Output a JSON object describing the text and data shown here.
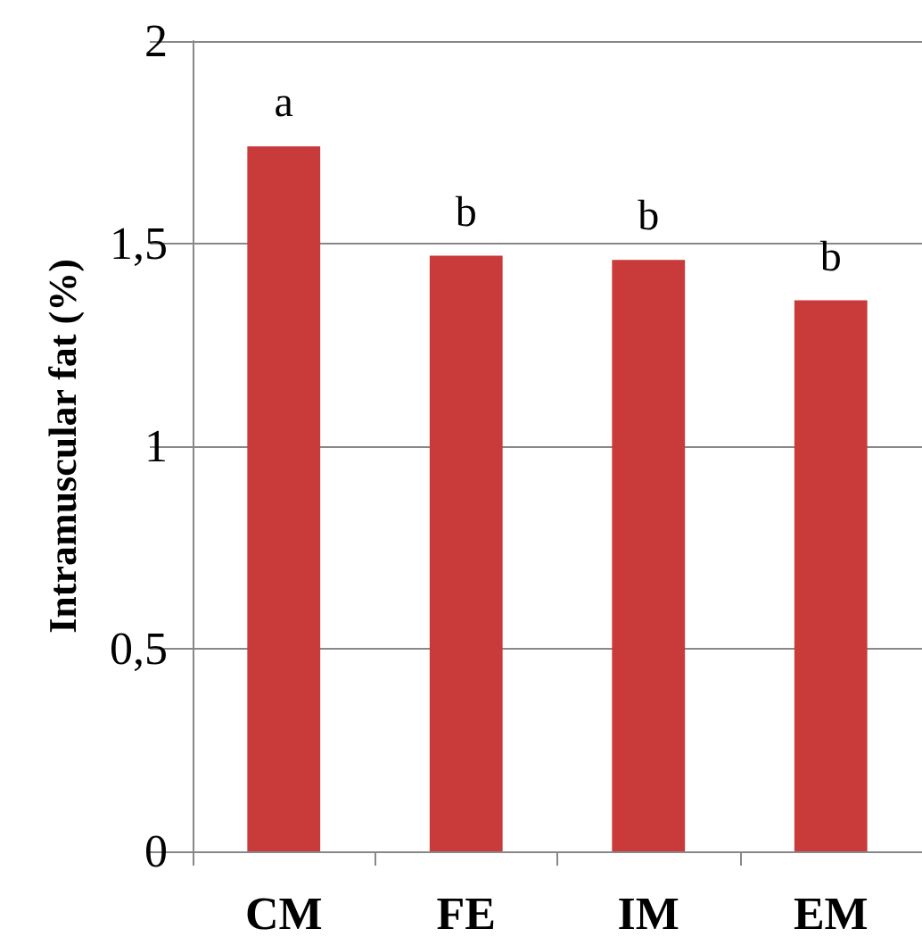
{
  "chart_data": {
    "type": "bar",
    "ylabel": "Intramuscular fat (%)",
    "categories": [
      "CM",
      "FE",
      "IM",
      "EM"
    ],
    "values": [
      1.74,
      1.47,
      1.46,
      1.36
    ],
    "color": "#c93a3a",
    "ylim": [
      0,
      2
    ],
    "yticks": [
      {
        "value": 0,
        "label": "0"
      },
      {
        "value": 0.5,
        "label": "0,5"
      },
      {
        "value": 1,
        "label": "1"
      },
      {
        "value": 1.5,
        "label": "1,5"
      },
      {
        "value": 2,
        "label": "2"
      }
    ],
    "grid": "y",
    "annotations": [
      {
        "text": "a",
        "x": "CM",
        "y": 1.74
      },
      {
        "text": "b",
        "x": "FE",
        "y": 1.47
      },
      {
        "text": "b",
        "x": "IM",
        "y": 1.46
      },
      {
        "text": "b",
        "x": "EM",
        "y": 1.36
      }
    ]
  }
}
